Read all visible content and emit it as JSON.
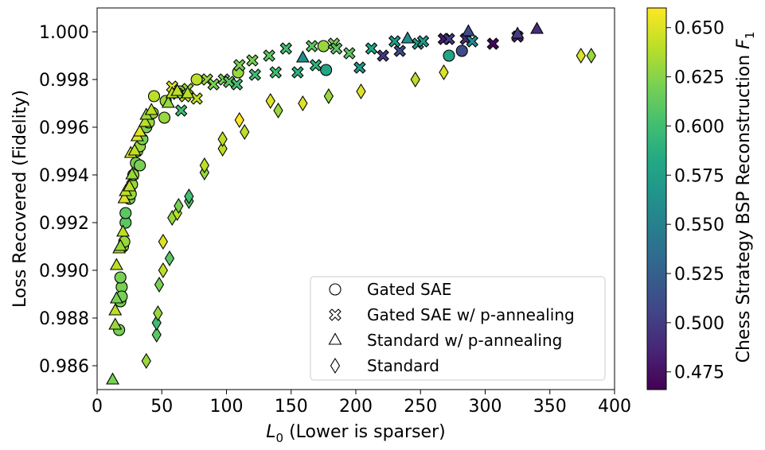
{
  "chart_data": {
    "type": "scatter",
    "xlabel_prefix": "L",
    "xlabel_sub": "0",
    "xlabel_suffix": " (Lower is sparser)",
    "ylabel": "Loss Recovered (Fidelity)",
    "xlim": [
      0,
      400
    ],
    "ylim": [
      0.985,
      1.001
    ],
    "xticks": [
      0,
      50,
      100,
      150,
      200,
      250,
      300,
      350,
      400
    ],
    "yticks": [
      0.986,
      0.988,
      0.99,
      0.992,
      0.994,
      0.996,
      0.998,
      1.0
    ],
    "colorbar": {
      "label_prefix": "Chess Strategy BSP Reconstruction ",
      "label_F": "F",
      "label_sub": "1",
      "range": [
        0.466,
        0.66
      ],
      "ticks": [
        0.475,
        0.5,
        0.525,
        0.55,
        0.575,
        0.6,
        0.625,
        0.65
      ]
    },
    "legend": {
      "position": "lower-right",
      "entries": [
        {
          "marker": "circle",
          "label": "Gated SAE"
        },
        {
          "marker": "x",
          "label": "Gated SAE w/ p-annealing"
        },
        {
          "marker": "triangle",
          "label": "Standard w/ p-annealing"
        },
        {
          "marker": "diamond",
          "label": "Standard"
        }
      ]
    },
    "series": [
      {
        "name": "Gated SAE",
        "marker": "circle",
        "points": [
          [
            17,
            0.9875,
            0.62
          ],
          [
            18,
            0.9887,
            0.62
          ],
          [
            19,
            0.9893,
            0.62
          ],
          [
            18,
            0.9897,
            0.62
          ],
          [
            19,
            0.9889,
            0.62
          ],
          [
            20,
            0.991,
            0.63
          ],
          [
            21,
            0.9912,
            0.63
          ],
          [
            22,
            0.992,
            0.61
          ],
          [
            22,
            0.9924,
            0.61
          ],
          [
            25,
            0.993,
            0.62
          ],
          [
            26,
            0.9932,
            0.63
          ],
          [
            27,
            0.9936,
            0.63
          ],
          [
            28,
            0.994,
            0.63
          ],
          [
            30,
            0.9945,
            0.62
          ],
          [
            31,
            0.995,
            0.63
          ],
          [
            33,
            0.9944,
            0.62
          ],
          [
            33,
            0.9952,
            0.63
          ],
          [
            35,
            0.9955,
            0.62
          ],
          [
            38,
            0.996,
            0.62
          ],
          [
            40,
            0.9962,
            0.63
          ],
          [
            43,
            0.9966,
            0.63
          ],
          [
            44,
            0.9973,
            0.64
          ],
          [
            52,
            0.9964,
            0.63
          ],
          [
            53,
            0.9971,
            0.63
          ],
          [
            60,
            0.9975,
            0.64
          ],
          [
            64,
            0.9975,
            0.62
          ],
          [
            77,
            0.998,
            0.64
          ],
          [
            109,
            0.9983,
            0.63
          ],
          [
            175,
            0.9994,
            0.63
          ],
          [
            177,
            0.9984,
            0.58
          ],
          [
            272,
            0.999,
            0.58
          ],
          [
            282,
            0.9992,
            0.51
          ]
        ]
      },
      {
        "name": "Gated SAE w/ p-annealing",
        "marker": "x",
        "points": [
          [
            58,
            0.9977,
            0.65
          ],
          [
            62,
            0.9974,
            0.63
          ],
          [
            65,
            0.9967,
            0.6
          ],
          [
            68,
            0.9973,
            0.64
          ],
          [
            70,
            0.9976,
            0.63
          ],
          [
            77,
            0.9972,
            0.64
          ],
          [
            85,
            0.998,
            0.63
          ],
          [
            90,
            0.9978,
            0.62
          ],
          [
            98,
            0.998,
            0.62
          ],
          [
            102,
            0.9979,
            0.61
          ],
          [
            108,
            0.9978,
            0.6
          ],
          [
            110,
            0.9986,
            0.62
          ],
          [
            120,
            0.9988,
            0.62
          ],
          [
            122,
            0.9982,
            0.6
          ],
          [
            133,
            0.999,
            0.61
          ],
          [
            138,
            0.9983,
            0.6
          ],
          [
            146,
            0.9993,
            0.6
          ],
          [
            155,
            0.9983,
            0.59
          ],
          [
            166,
            0.9994,
            0.61
          ],
          [
            169,
            0.9986,
            0.59
          ],
          [
            183,
            0.9995,
            0.62
          ],
          [
            185,
            0.9993,
            0.61
          ],
          [
            195,
            0.9991,
            0.61
          ],
          [
            203,
            0.9985,
            0.57
          ],
          [
            212,
            0.9993,
            0.58
          ],
          [
            221,
            0.999,
            0.5
          ],
          [
            234,
            0.9992,
            0.51
          ],
          [
            230,
            0.9996,
            0.57
          ],
          [
            248,
            0.9995,
            0.57
          ],
          [
            252,
            0.9996,
            0.57
          ],
          [
            268,
            0.9997,
            0.48
          ],
          [
            272,
            0.9997,
            0.5
          ],
          [
            285,
            0.9997,
            0.49
          ],
          [
            290,
            0.9996,
            0.56
          ],
          [
            306,
            0.9995,
            0.47
          ],
          [
            325,
            0.9998,
            0.48
          ]
        ]
      },
      {
        "name": "Standard w/ p-annealing",
        "marker": "triangle",
        "points": [
          [
            12,
            0.9854,
            0.62
          ],
          [
            14,
            0.9877,
            0.63
          ],
          [
            14,
            0.9883,
            0.64
          ],
          [
            15,
            0.9888,
            0.62
          ],
          [
            15,
            0.9902,
            0.64
          ],
          [
            17,
            0.9909,
            0.64
          ],
          [
            18,
            0.991,
            0.63
          ],
          [
            20,
            0.9916,
            0.64
          ],
          [
            21,
            0.993,
            0.65
          ],
          [
            22,
            0.9933,
            0.64
          ],
          [
            25,
            0.9935,
            0.64
          ],
          [
            27,
            0.994,
            0.63
          ],
          [
            26,
            0.9949,
            0.65
          ],
          [
            29,
            0.995,
            0.64
          ],
          [
            31,
            0.9956,
            0.65
          ],
          [
            33,
            0.9958,
            0.65
          ],
          [
            37,
            0.9962,
            0.64
          ],
          [
            38,
            0.9965,
            0.63
          ],
          [
            42,
            0.9967,
            0.64
          ],
          [
            55,
            0.997,
            0.63
          ],
          [
            58,
            0.9974,
            0.64
          ],
          [
            62,
            0.9975,
            0.64
          ],
          [
            70,
            0.9974,
            0.64
          ],
          [
            159,
            0.9989,
            0.56
          ],
          [
            240,
            0.9997,
            0.56
          ],
          [
            287,
            1.0,
            0.51
          ],
          [
            325,
            0.9999,
            0.5
          ],
          [
            340,
            1.0001,
            0.49
          ]
        ]
      },
      {
        "name": "Standard",
        "marker": "diamond",
        "points": [
          [
            38,
            0.9862,
            0.63
          ],
          [
            46,
            0.9873,
            0.61
          ],
          [
            46,
            0.9878,
            0.6
          ],
          [
            47,
            0.9882,
            0.63
          ],
          [
            48,
            0.9894,
            0.62
          ],
          [
            51,
            0.99,
            0.64
          ],
          [
            51,
            0.9912,
            0.65
          ],
          [
            56,
            0.9905,
            0.61
          ],
          [
            58,
            0.9922,
            0.63
          ],
          [
            62,
            0.9924,
            0.64
          ],
          [
            63,
            0.9927,
            0.62
          ],
          [
            71,
            0.9929,
            0.61
          ],
          [
            71,
            0.9931,
            0.6
          ],
          [
            83,
            0.9941,
            0.63
          ],
          [
            83,
            0.9944,
            0.64
          ],
          [
            97,
            0.9951,
            0.64
          ],
          [
            97,
            0.9955,
            0.64
          ],
          [
            110,
            0.9963,
            0.66
          ],
          [
            114,
            0.9958,
            0.64
          ],
          [
            134,
            0.9971,
            0.65
          ],
          [
            140,
            0.9967,
            0.63
          ],
          [
            159,
            0.997,
            0.65
          ],
          [
            179,
            0.9973,
            0.63
          ],
          [
            204,
            0.9975,
            0.65
          ],
          [
            246,
            0.998,
            0.64
          ],
          [
            268,
            0.9983,
            0.65
          ],
          [
            374,
            0.999,
            0.65
          ],
          [
            382,
            0.999,
            0.63
          ]
        ]
      }
    ]
  }
}
